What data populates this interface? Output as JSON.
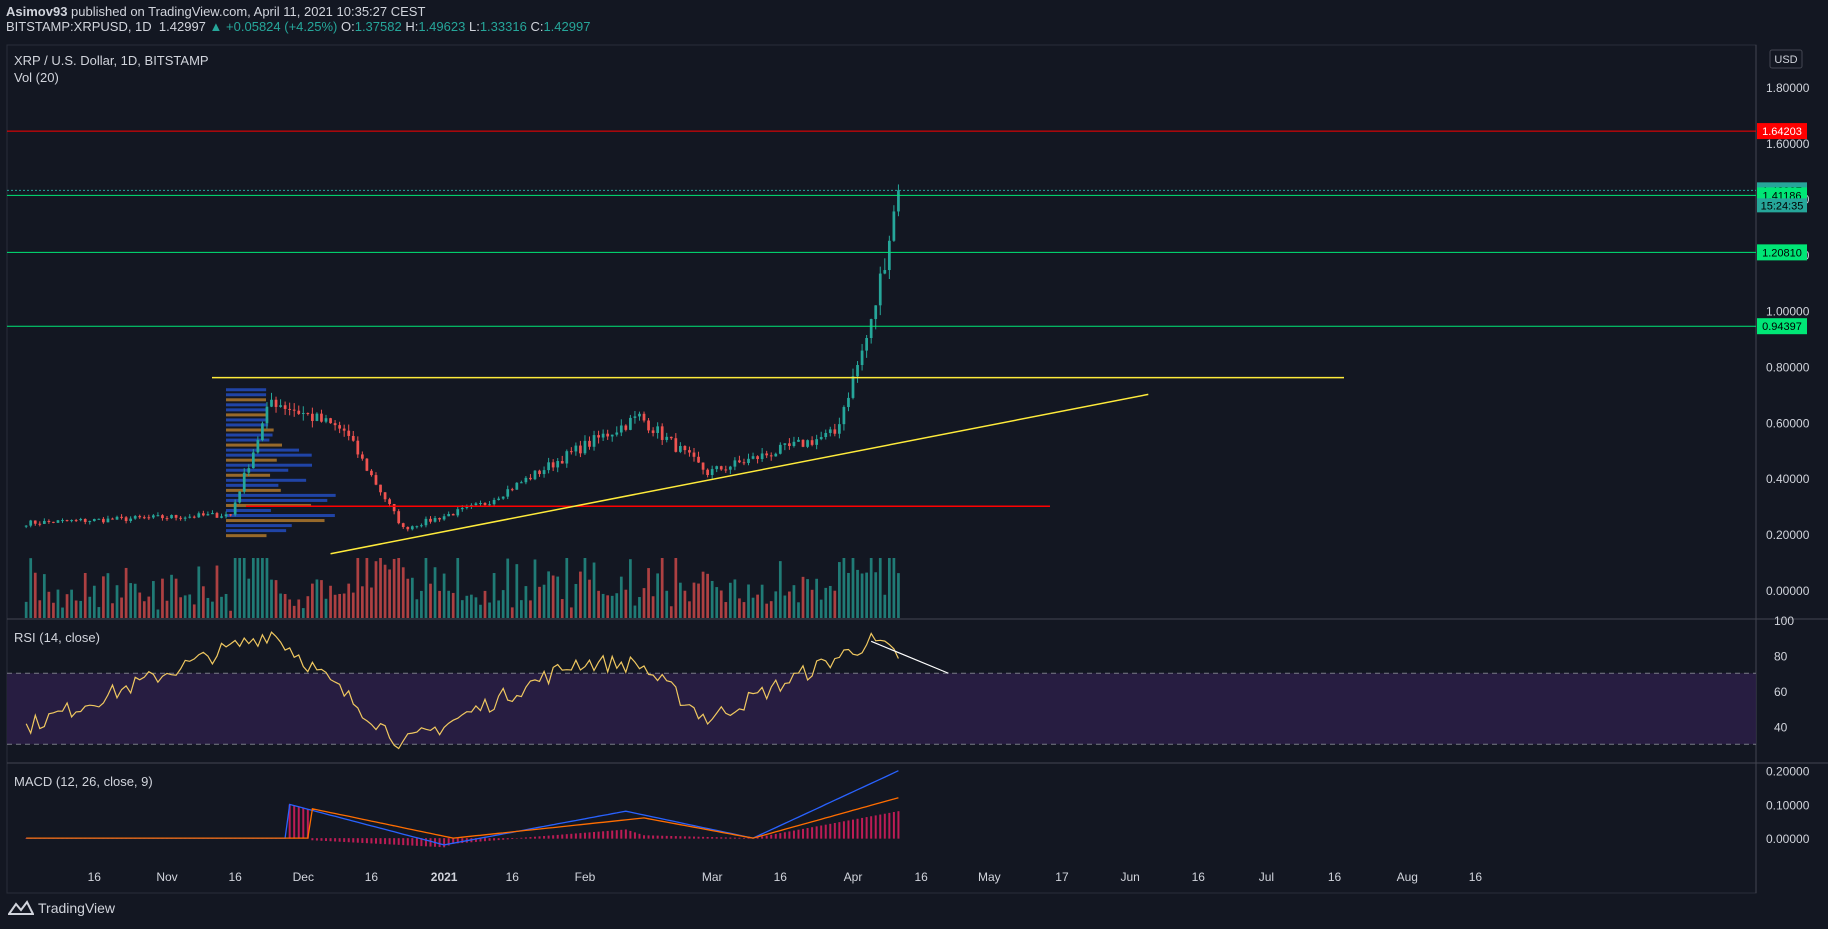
{
  "header": {
    "author": "Asimov93",
    "published_text": "published on TradingView.com, April 11, 2021 10:35:27 CEST",
    "symbol": "BITSTAMP:XRPUSD, 1D",
    "last": "1.42997",
    "change": "+0.05824 (+4.25%)",
    "o_label": "O:",
    "o_value": "1.37582",
    "h_label": "H:",
    "h_value": "1.49623",
    "l_label": "L:",
    "l_value": "1.33316",
    "c_label": "C:",
    "c_value": "1.42997"
  },
  "legend": {
    "main": "XRP / U.S. Dollar, 1D, BITSTAMP",
    "vol": "Vol (20)",
    "rsi": "RSI (14, close)",
    "macd": "MACD (12, 26, close, 9)"
  },
  "currency_button": "USD",
  "countdown": "15:24:35",
  "brand": "TradingView",
  "colors": {
    "background": "#131722",
    "up": "#26a69a",
    "down": "#ef5350",
    "resistance": "#ff0000",
    "support": "#00e676",
    "trendline": "#ffeb3b",
    "rsi_band": "#2a1e45",
    "macd_line": "#2962ff",
    "signal_line": "#ff6d00",
    "histogram": "#e91e63"
  },
  "chart_data": [
    {
      "type": "candlestick",
      "title": "XRP / U.S. Dollar, 1D, BITSTAMP",
      "ylim": [
        -0.1,
        1.95
      ],
      "y_ticks": [
        "1.80000",
        "1.60000",
        "1.40000",
        "1.20000",
        "1.00000",
        "0.80000",
        "0.60000",
        "0.40000",
        "0.20000",
        "0.00000"
      ],
      "x_ticks": [
        "16",
        "Nov",
        "16",
        "Dec",
        "16",
        "2021",
        "16",
        "Feb",
        "Mar",
        "16",
        "Apr",
        "16",
        "May",
        "17",
        "Jun",
        "16",
        "Jul",
        "16",
        "Aug",
        "16"
      ],
      "key_points": [
        {
          "date": "2020-10-01",
          "close": 0.24
        },
        {
          "date": "2020-11-15",
          "close": 0.27
        },
        {
          "date": "2020-11-24",
          "close": 0.68
        },
        {
          "date": "2020-12-10",
          "close": 0.57
        },
        {
          "date": "2020-12-23",
          "close": 0.22
        },
        {
          "date": "2021-01-10",
          "close": 0.31
        },
        {
          "date": "2021-01-30",
          "close": 0.5
        },
        {
          "date": "2021-02-13",
          "close": 0.62
        },
        {
          "date": "2021-02-28",
          "close": 0.42
        },
        {
          "date": "2021-03-28",
          "close": 0.56
        },
        {
          "date": "2021-04-05",
          "close": 0.95
        },
        {
          "date": "2021-04-11",
          "close": 1.43
        }
      ],
      "horizontal_levels": [
        {
          "value": 1.64203,
          "label": "1.64203",
          "color": "red"
        },
        {
          "value": 1.42997,
          "label": "1.42997",
          "color": "teal"
        },
        {
          "value": 1.41186,
          "label": "1.41186",
          "color": "green"
        },
        {
          "value": 1.2081,
          "label": "1.20810",
          "color": "green"
        },
        {
          "value": 0.94397,
          "label": "0.94397",
          "color": "green"
        }
      ],
      "drawn_lines": [
        {
          "kind": "horizontal",
          "value": 0.76,
          "color": "yellow"
        },
        {
          "kind": "horizontal",
          "value": 0.3,
          "color": "red"
        },
        {
          "kind": "trendline",
          "from": {
            "date": "2020-12-07",
            "value": 0.13
          },
          "to": {
            "date": "2021-06-05",
            "value": 0.7
          },
          "color": "yellow"
        }
      ]
    },
    {
      "type": "bar",
      "title": "Vol (20)",
      "note": "volume histogram overlay with 20-period moving average"
    },
    {
      "type": "line",
      "title": "RSI (14, close)",
      "ylim": [
        20,
        100
      ],
      "y_ticks": [
        "100",
        "80",
        "60",
        "40"
      ],
      "band": [
        30,
        70
      ],
      "key_points": [
        {
          "date": "2020-10-01",
          "value": 40
        },
        {
          "date": "2020-11-24",
          "value": 93
        },
        {
          "date": "2020-12-23",
          "value": 30
        },
        {
          "date": "2021-01-30",
          "value": 76
        },
        {
          "date": "2021-02-13",
          "value": 75
        },
        {
          "date": "2021-02-28",
          "value": 44
        },
        {
          "date": "2021-04-05",
          "value": 88
        },
        {
          "date": "2021-04-11",
          "value": 80
        }
      ]
    },
    {
      "type": "line",
      "title": "MACD (12, 26, close, 9)",
      "ylim": [
        -0.05,
        0.22
      ],
      "y_ticks": [
        "0.20000",
        "0.10000",
        "0.00000"
      ],
      "series": [
        {
          "name": "MACD",
          "key_points": [
            {
              "date": "2020-11-28",
              "value": 0.1
            },
            {
              "date": "2021-01-01",
              "value": -0.02
            },
            {
              "date": "2021-02-10",
              "value": 0.08
            },
            {
              "date": "2021-03-10",
              "value": 0.0
            },
            {
              "date": "2021-04-11",
              "value": 0.2
            }
          ]
        },
        {
          "name": "Signal",
          "key_points": [
            {
              "date": "2020-12-02",
              "value": 0.09
            },
            {
              "date": "2021-01-03",
              "value": 0.0
            },
            {
              "date": "2021-02-14",
              "value": 0.06
            },
            {
              "date": "2021-03-10",
              "value": 0.0
            },
            {
              "date": "2021-04-11",
              "value": 0.12
            }
          ]
        }
      ]
    }
  ]
}
